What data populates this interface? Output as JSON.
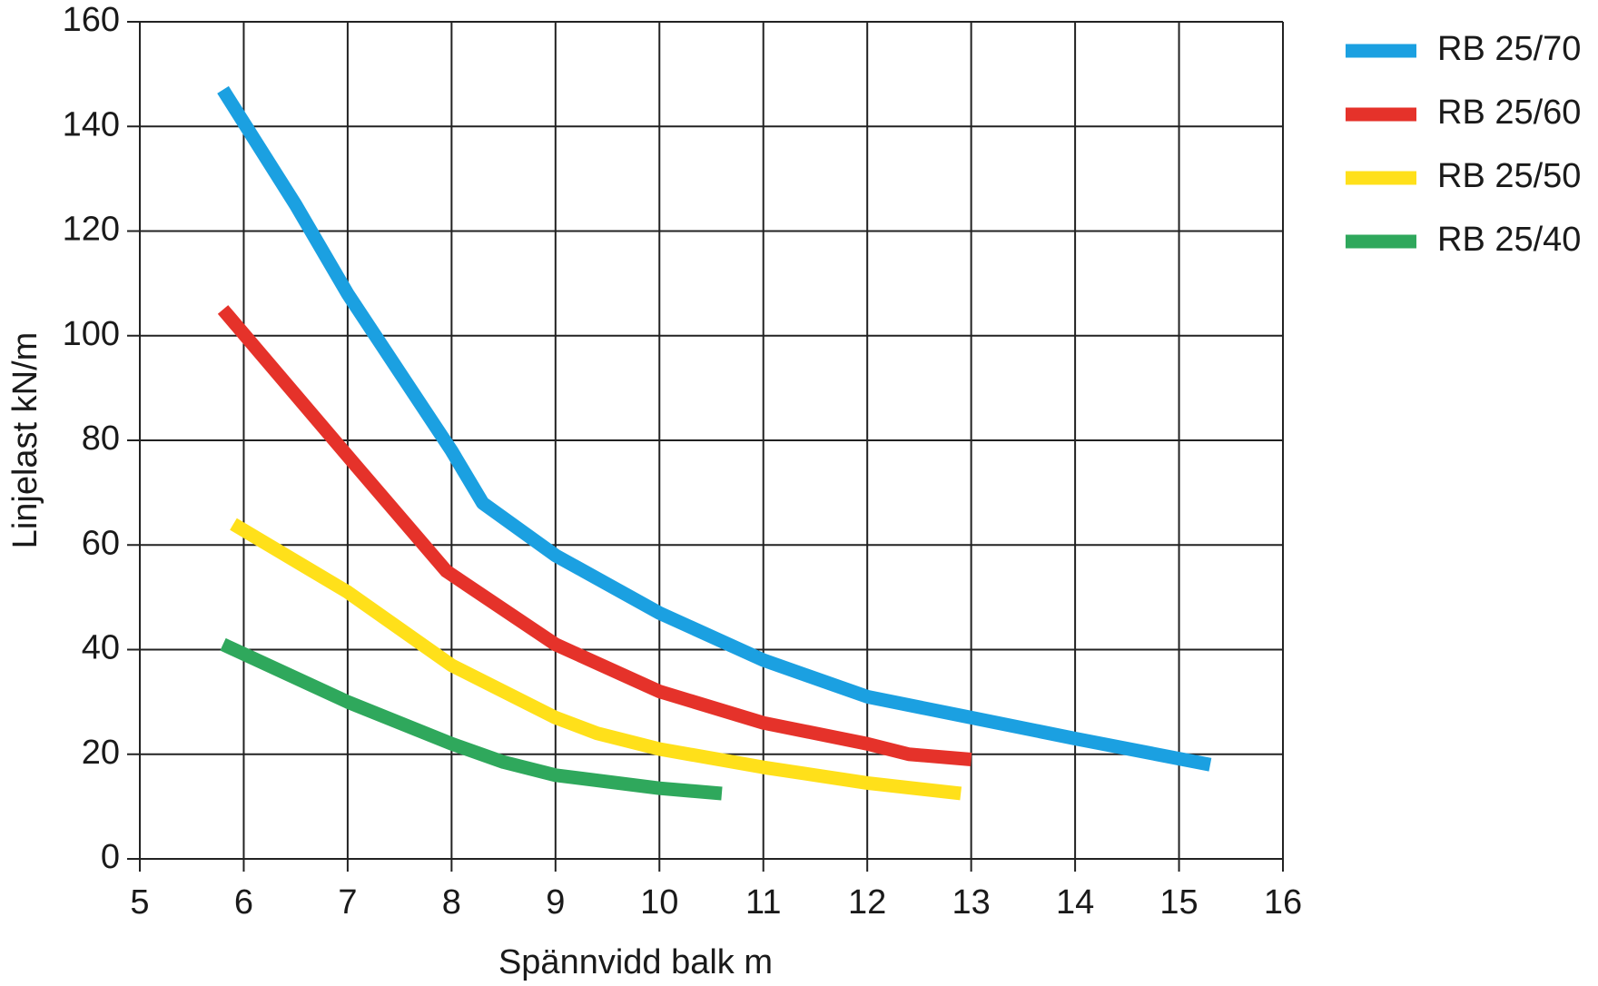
{
  "chart_data": {
    "type": "line",
    "xlabel": "Spännvidd balk m",
    "ylabel": "Linjelast kN/m",
    "xlim": [
      5,
      16
    ],
    "xticks": [
      5,
      6,
      7,
      8,
      9,
      10,
      11,
      12,
      13,
      14,
      15,
      16
    ],
    "ylim": [
      0,
      160
    ],
    "yticks": [
      0,
      20,
      40,
      60,
      80,
      100,
      120,
      140,
      160
    ],
    "grid": true,
    "legend": "right",
    "series": [
      {
        "name": "RB 25/70",
        "color": "#1ba0e1",
        "x": [
          5.8,
          6.5,
          7,
          7.5,
          8,
          8.3,
          9,
          10,
          11,
          12,
          13,
          14,
          15.3
        ],
        "values": [
          147,
          125,
          108,
          93,
          78,
          68,
          58,
          47,
          38,
          31,
          27,
          23,
          18
        ]
      },
      {
        "name": "RB 25/60",
        "color": "#e5322a",
        "x": [
          5.8,
          7,
          7.95,
          9,
          10,
          11,
          12,
          12.4,
          13
        ],
        "values": [
          105,
          77,
          55,
          41,
          32,
          26,
          22,
          20,
          19
        ]
      },
      {
        "name": "RB 25/50",
        "color": "#ffe01a",
        "x": [
          5.9,
          7,
          8,
          9,
          9.4,
          10,
          11,
          12,
          12.9
        ],
        "values": [
          64,
          51,
          37,
          27,
          24,
          21,
          17.5,
          14.5,
          12.5
        ]
      },
      {
        "name": "RB 25/40",
        "color": "#2fa85c",
        "x": [
          5.8,
          7,
          8,
          8.5,
          9,
          10,
          10.6
        ],
        "values": [
          41,
          30,
          22,
          18.5,
          16,
          13.5,
          12.5
        ]
      }
    ]
  }
}
